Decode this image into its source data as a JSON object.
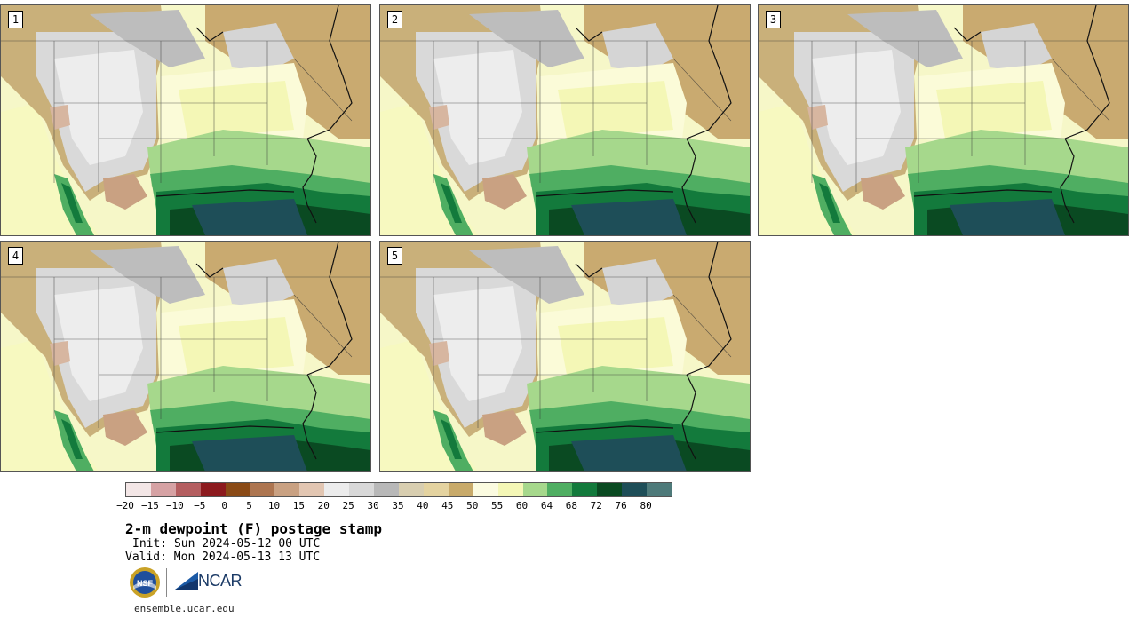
{
  "panels": [
    {
      "label": "1"
    },
    {
      "label": "2"
    },
    {
      "label": "3"
    },
    {
      "label": "4"
    },
    {
      "label": "5"
    }
  ],
  "colorbar": {
    "ticks": [
      "−20",
      "−15",
      "−10",
      "−5",
      "0",
      "5",
      "10",
      "15",
      "20",
      "25",
      "30",
      "35",
      "40",
      "45",
      "50",
      "55",
      "60",
      "64",
      "68",
      "72",
      "76",
      "80"
    ],
    "colors": [
      "#f3e6e6",
      "#d6a2a4",
      "#b45e60",
      "#8c1a1e",
      "#8a4a16",
      "#ad7550",
      "#c9a182",
      "#e2c6b2",
      "#ececec",
      "#d8d8d8",
      "#b8b8b8",
      "#d8ceb0",
      "#e4d3a0",
      "#c8aa6a",
      "#fbfbe0",
      "#f4f7b6",
      "#a6d88c",
      "#4fae62",
      "#137a3c",
      "#0a4a22",
      "#1e4e58",
      "#4e7a7a"
    ]
  },
  "title": "2-m dewpoint (F) postage stamp",
  "init": "Init: Sun 2024-05-12 00 UTC",
  "valid": "Valid: Mon 2024-05-13 13 UTC",
  "logos": {
    "nsf": "NSF",
    "ncar": "NCAR"
  },
  "site": "ensemble.ucar.edu"
}
